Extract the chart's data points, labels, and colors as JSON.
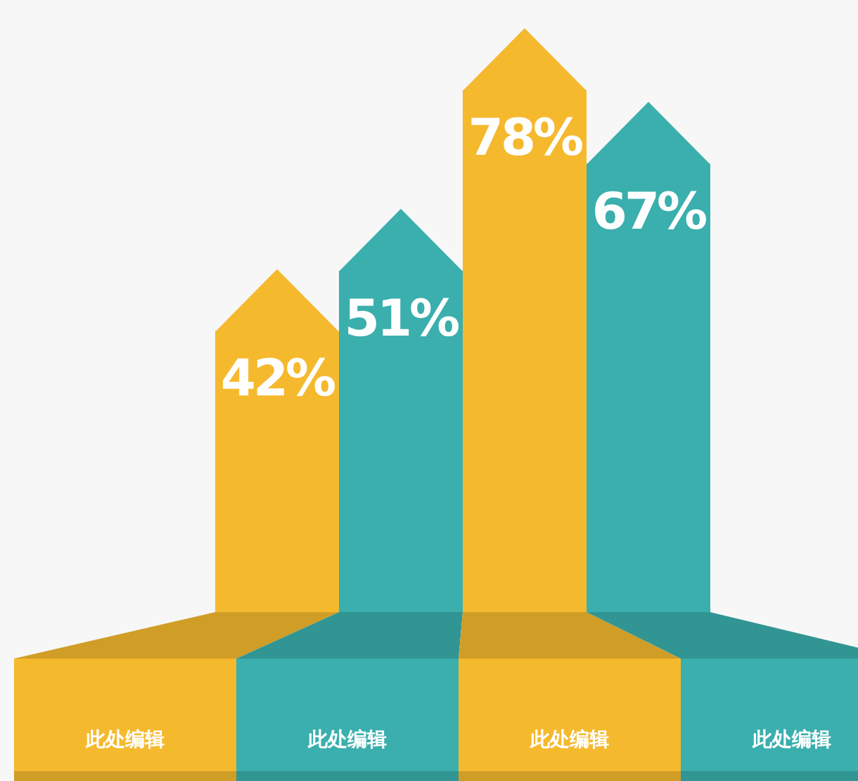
{
  "chart_data": {
    "type": "bar",
    "categories": [
      null,
      null,
      null,
      null
    ],
    "values": [
      42,
      51,
      78,
      67
    ],
    "colors": [
      "#f5b92e",
      "#3aafad",
      "#f5b92e",
      "#3aafad"
    ],
    "data_labels": true,
    "value_labels": [
      "42%",
      "51%",
      "78%",
      "67%"
    ],
    "annotations": [
      "此处编辑",
      "此处编辑",
      "此处编辑",
      "此处编辑"
    ]
  }
}
